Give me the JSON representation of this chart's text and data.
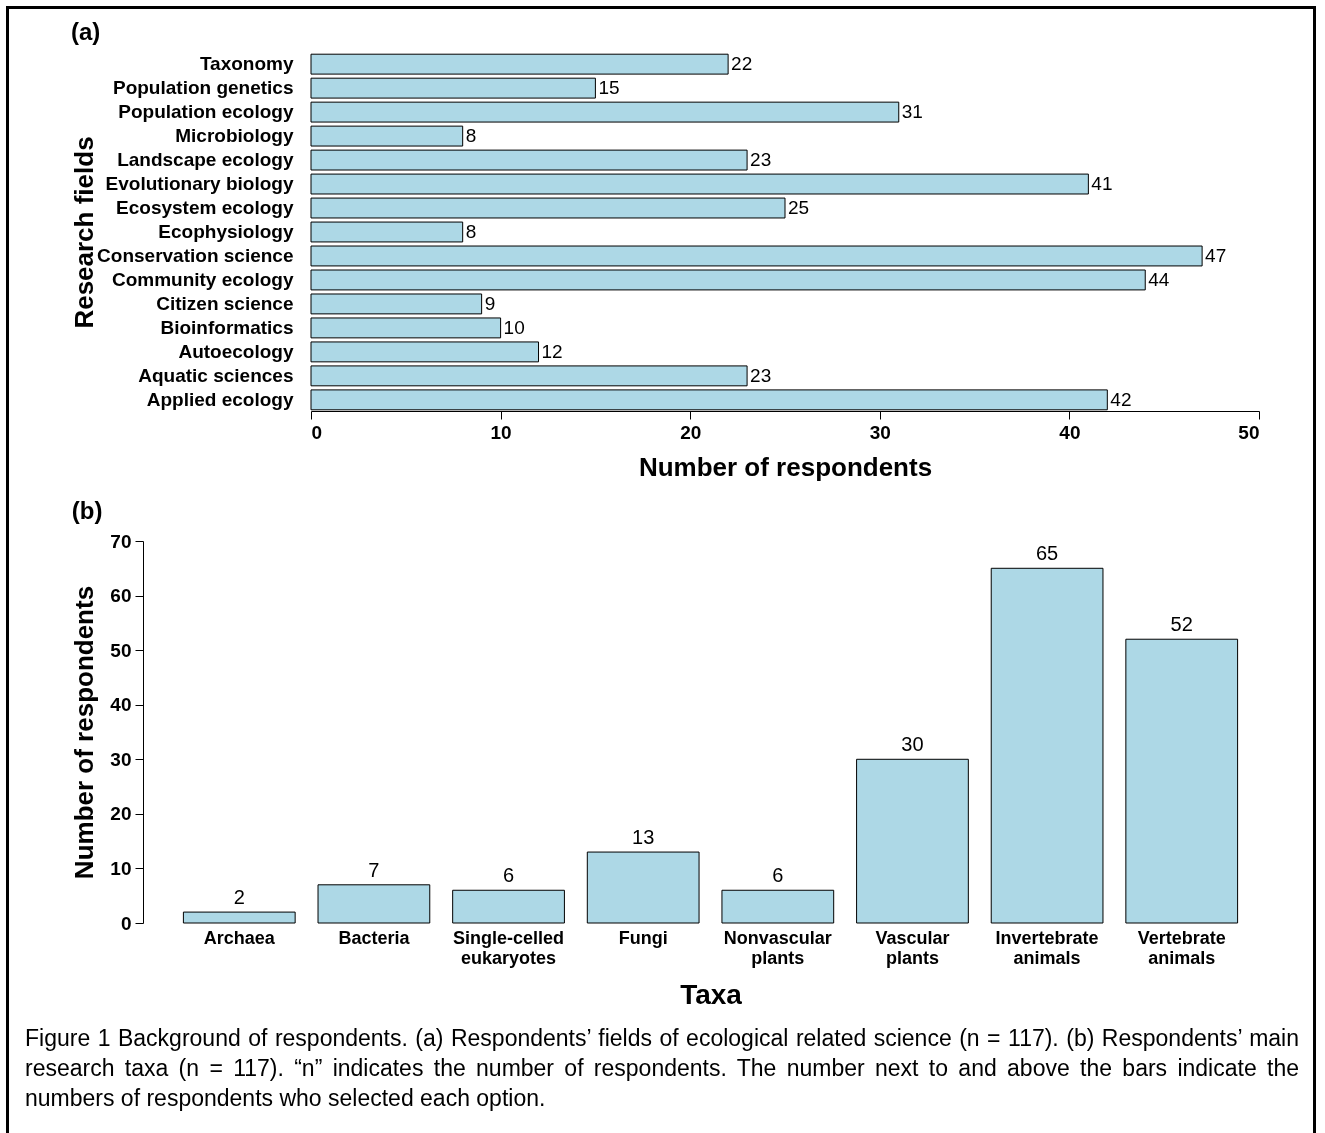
{
  "chart_data": [
    {
      "type": "bar",
      "title": "(a)",
      "orientation": "horizontal",
      "categories": [
        "Taxonomy",
        "Population genetics",
        "Population ecology",
        "Microbiology",
        "Landscape ecology",
        "Evolutionary biology",
        "Ecosystem ecology",
        "Ecophysiology",
        "Conservation science",
        "Community ecology",
        "Citizen science",
        "Bioinformatics",
        "Autoecology",
        "Aquatic sciences",
        "Applied ecology"
      ],
      "values": [
        22,
        15,
        31,
        8,
        23,
        41,
        25,
        8,
        47,
        44,
        9,
        10,
        12,
        23,
        42
      ],
      "color": "#add8e6",
      "xlim": [
        0,
        50
      ],
      "xticks": [
        0,
        10,
        20,
        30,
        40,
        50
      ],
      "xlabel": "Number of respondents",
      "ylabel": "Research fields",
      "data_labels": true,
      "grid": false
    },
    {
      "type": "bar",
      "title": "(b)",
      "categories": [
        "Archaea",
        "Bacteria",
        "Single-celled eukaryotes",
        "Fungi",
        "Nonvascular plants",
        "Vascular plants",
        "Invertebrate animals",
        "Vertebrate animals"
      ],
      "values": [
        2,
        7,
        6,
        13,
        6,
        30,
        65,
        52
      ],
      "color": "#add8e6",
      "ylim": [
        0,
        70
      ],
      "yticks": [
        0,
        10,
        20,
        30,
        40,
        50,
        60,
        70
      ],
      "xlabel": "Taxa",
      "ylabel": "Number of respondents",
      "data_labels": true,
      "grid": false,
      "annotations": [
        "Figure 1 Background of respondents. (a) Respondents’ fields of ecological related science (n = 117). (b) Respondents’ main research taxa (n = 117). “n” indicates the number of respondents. The number next to and above the bars indicate the numbers of respondents who selected each option."
      ]
    }
  ]
}
